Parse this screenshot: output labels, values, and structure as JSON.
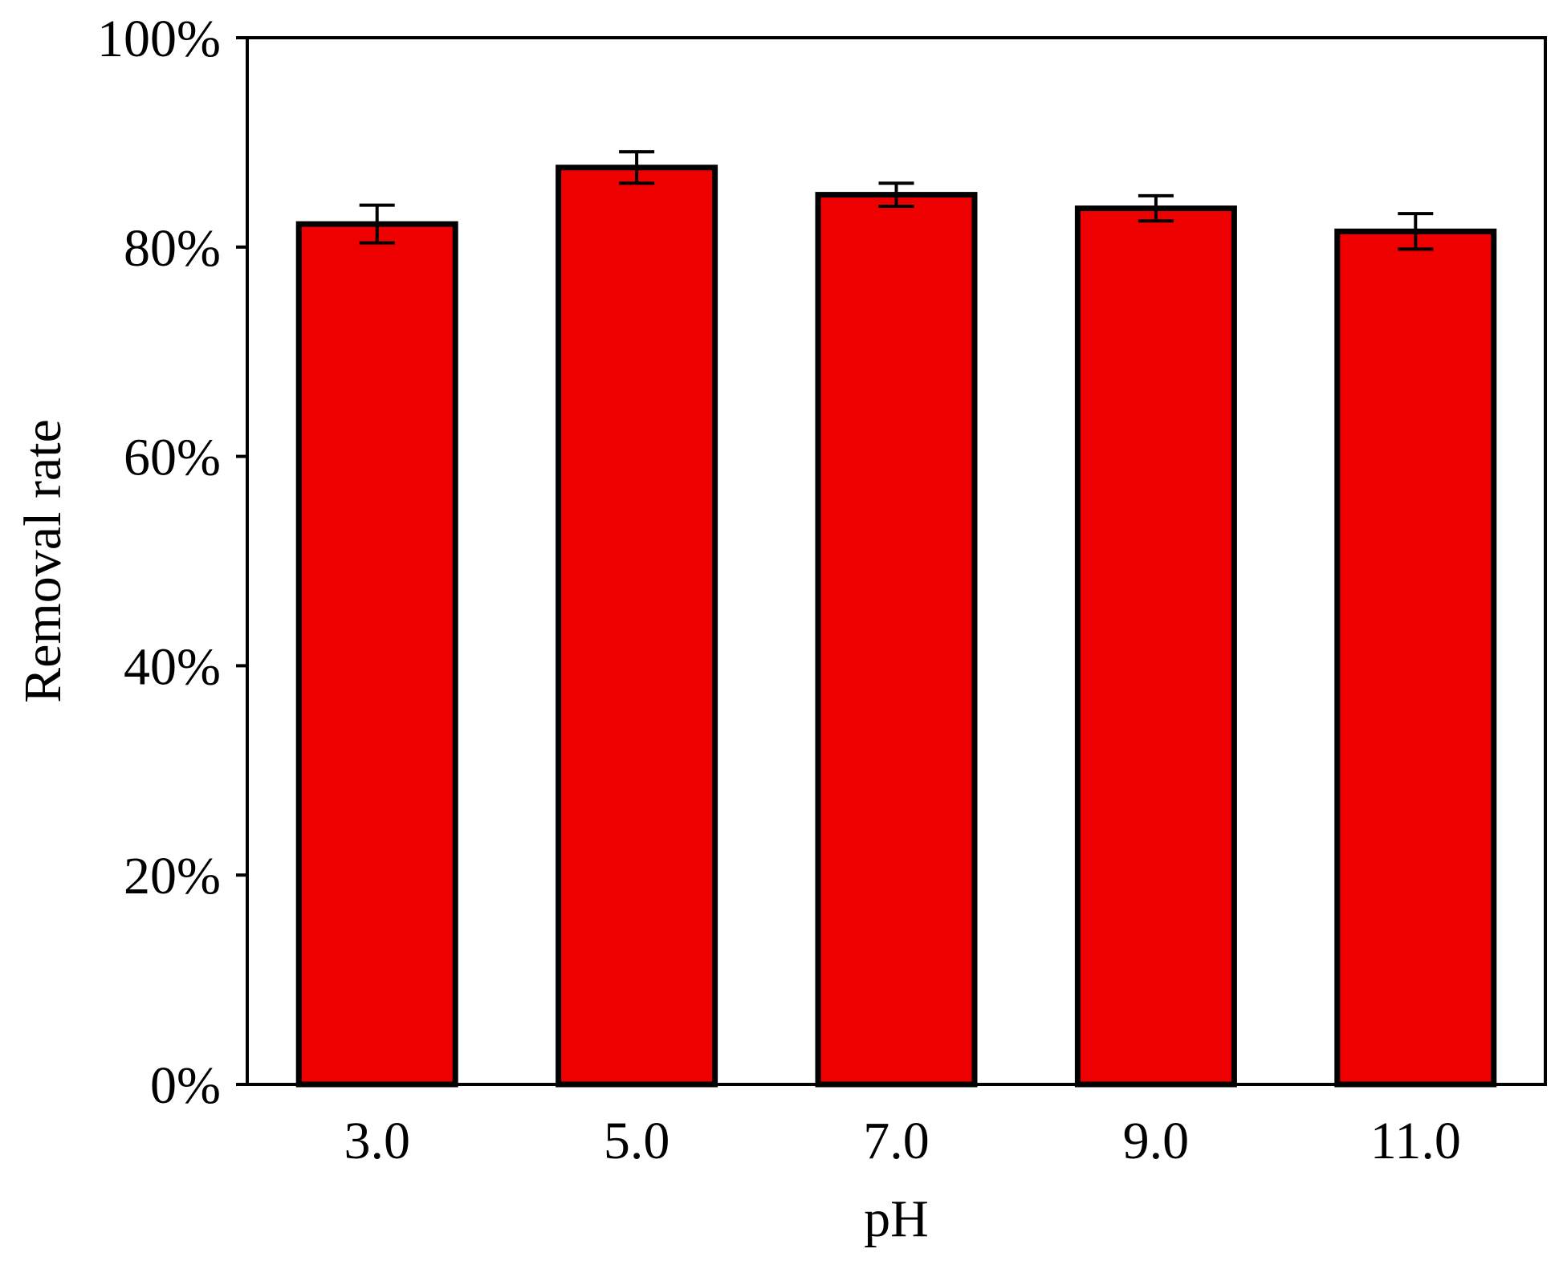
{
  "chart_data": {
    "type": "bar",
    "xlabel": "pH",
    "ylabel": "Removal rate",
    "categories": [
      "3.0",
      "5.0",
      "7.0",
      "9.0",
      "11.0"
    ],
    "values": [
      82.2,
      87.6,
      85.0,
      83.7,
      81.5
    ],
    "errors": [
      1.8,
      1.5,
      1.1,
      1.2,
      1.7
    ],
    "ylim": [
      0,
      100
    ],
    "yticks": [
      0,
      20,
      40,
      60,
      80,
      100
    ],
    "ytick_labels": [
      "0%",
      "20%",
      "40%",
      "60%",
      "80%",
      "100%"
    ],
    "grid": false,
    "legend": "none",
    "bar_color": "#ee0000",
    "edge_color": "#000000"
  }
}
